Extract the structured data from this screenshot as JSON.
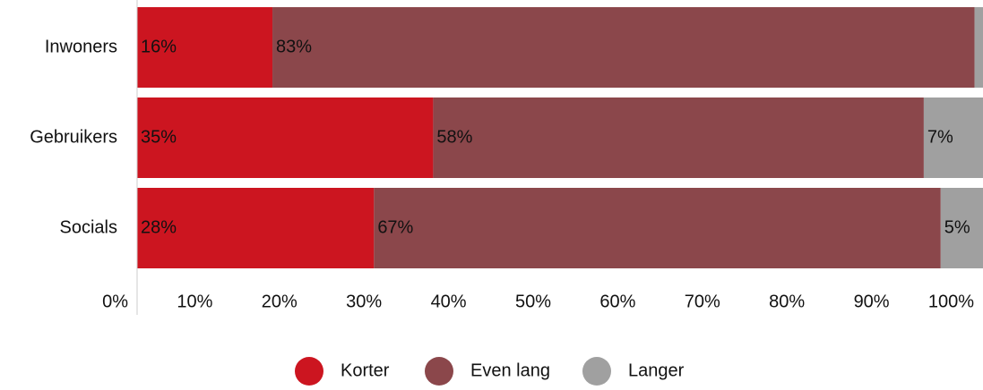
{
  "chart_data": {
    "type": "stacked-bar",
    "orientation": "horizontal",
    "categories": [
      "Inwoners",
      "Gebruikers",
      "Socials"
    ],
    "series": [
      {
        "name": "Korter",
        "color": "#cc1520",
        "values": [
          16,
          35,
          28
        ],
        "value_labels": [
          "16%",
          "35%",
          "28%"
        ]
      },
      {
        "name": "Even lang",
        "color": "#8b474b",
        "values": [
          83,
          58,
          67
        ],
        "value_labels": [
          "83%",
          "58%",
          "67%"
        ]
      },
      {
        "name": "Langer",
        "color": "#a0a0a0",
        "values": [
          1,
          7,
          5
        ],
        "value_labels": [
          null,
          "7%",
          "5%"
        ]
      }
    ],
    "xlim": [
      0,
      100
    ],
    "xticks": [
      {
        "value": 0,
        "label": "0%"
      },
      {
        "value": 10,
        "label": "10%"
      },
      {
        "value": 20,
        "label": "20%"
      },
      {
        "value": 30,
        "label": "30%"
      },
      {
        "value": 40,
        "label": "40%"
      },
      {
        "value": 50,
        "label": "50%"
      },
      {
        "value": 60,
        "label": "60%"
      },
      {
        "value": 70,
        "label": "70%"
      },
      {
        "value": 80,
        "label": "80%"
      },
      {
        "value": 90,
        "label": "90%"
      },
      {
        "value": 100,
        "label": "100%"
      }
    ],
    "legend": "bottom"
  }
}
